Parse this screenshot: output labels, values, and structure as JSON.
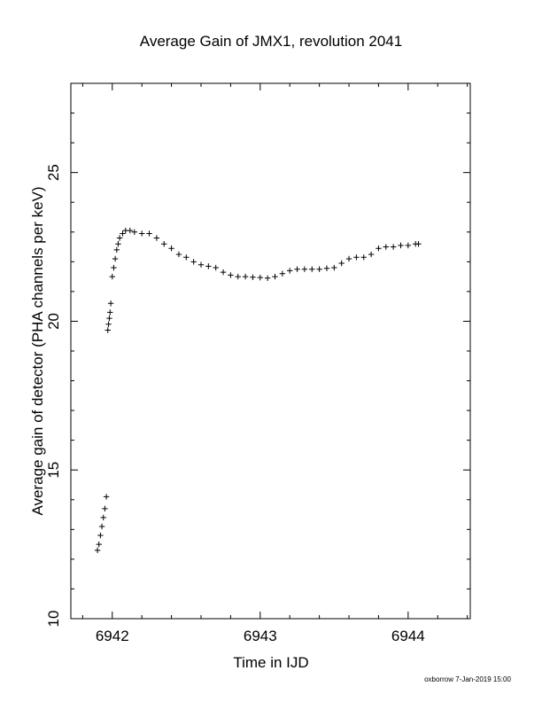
{
  "chart_data": {
    "type": "scatter",
    "title": "Average Gain of JMX1, revolution 2041",
    "xlabel": "Time in IJD",
    "ylabel": "Average gain of detector (PHA channels per keV)",
    "xlim": [
      6941.72,
      6944.42
    ],
    "ylim": [
      10,
      28
    ],
    "xticks": [
      6942,
      6943,
      6944
    ],
    "xtick_labels": [
      "6942",
      "6943",
      "6944"
    ],
    "yticks": [
      10,
      15,
      20,
      25
    ],
    "ytick_labels": [
      "10",
      "15",
      "20",
      "25"
    ],
    "grid": false,
    "marker": "plus",
    "marker_color": "#000000",
    "series": [
      {
        "points": [
          [
            6941.9,
            12.3
          ],
          [
            6941.91,
            12.5
          ],
          [
            6941.92,
            12.8
          ],
          [
            6941.93,
            13.1
          ],
          [
            6941.94,
            13.4
          ],
          [
            6941.95,
            13.7
          ],
          [
            6941.96,
            14.1
          ],
          [
            6941.97,
            19.7
          ],
          [
            6941.975,
            19.9
          ],
          [
            6941.98,
            20.1
          ],
          [
            6941.985,
            20.3
          ],
          [
            6941.99,
            20.6
          ],
          [
            6942.0,
            21.5
          ],
          [
            6942.01,
            21.8
          ],
          [
            6942.02,
            22.1
          ],
          [
            6942.03,
            22.4
          ],
          [
            6942.04,
            22.6
          ],
          [
            6942.05,
            22.8
          ],
          [
            6942.07,
            22.95
          ],
          [
            6942.09,
            23.05
          ],
          [
            6942.12,
            23.05
          ],
          [
            6942.15,
            23.0
          ],
          [
            6942.2,
            22.95
          ],
          [
            6942.25,
            22.95
          ],
          [
            6942.3,
            22.8
          ],
          [
            6942.35,
            22.6
          ],
          [
            6942.4,
            22.45
          ],
          [
            6942.45,
            22.25
          ],
          [
            6942.5,
            22.15
          ],
          [
            6942.55,
            22.0
          ],
          [
            6942.6,
            21.9
          ],
          [
            6942.65,
            21.85
          ],
          [
            6942.7,
            21.8
          ],
          [
            6942.75,
            21.65
          ],
          [
            6942.8,
            21.55
          ],
          [
            6942.85,
            21.5
          ],
          [
            6942.9,
            21.5
          ],
          [
            6942.95,
            21.48
          ],
          [
            6943.0,
            21.47
          ],
          [
            6943.05,
            21.45
          ],
          [
            6943.1,
            21.5
          ],
          [
            6943.15,
            21.6
          ],
          [
            6943.2,
            21.7
          ],
          [
            6943.25,
            21.75
          ],
          [
            6943.3,
            21.75
          ],
          [
            6943.35,
            21.75
          ],
          [
            6943.4,
            21.75
          ],
          [
            6943.45,
            21.78
          ],
          [
            6943.5,
            21.8
          ],
          [
            6943.55,
            21.95
          ],
          [
            6943.6,
            22.1
          ],
          [
            6943.65,
            22.15
          ],
          [
            6943.7,
            22.15
          ],
          [
            6943.75,
            22.25
          ],
          [
            6943.8,
            22.45
          ],
          [
            6943.85,
            22.5
          ],
          [
            6943.9,
            22.5
          ],
          [
            6943.95,
            22.55
          ],
          [
            6944.0,
            22.55
          ],
          [
            6944.05,
            22.6
          ],
          [
            6944.07,
            22.6
          ]
        ]
      }
    ]
  },
  "footer": {
    "credit": "oxborrow  7-Jan-2019 15:00"
  }
}
